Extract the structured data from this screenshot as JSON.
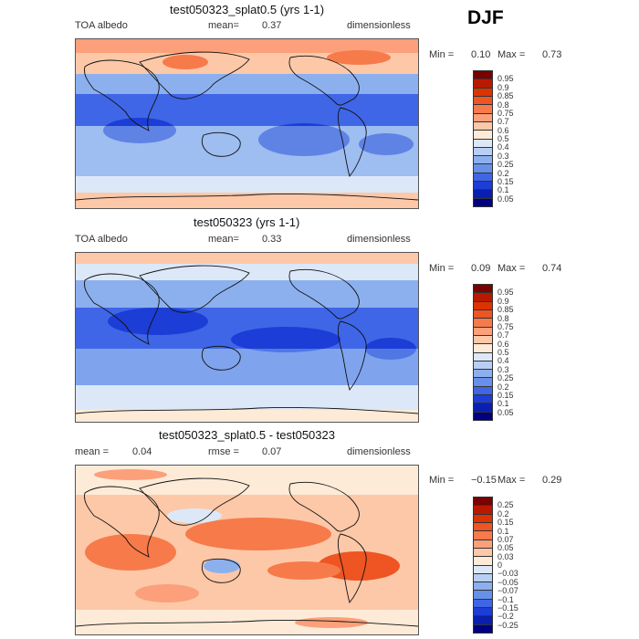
{
  "season": "DJF",
  "chart_data": [
    {
      "type": "heatmap",
      "title": "test050323_splat0.5 (yrs 1-1)",
      "left_label": "TOA albedo",
      "stat_label": "mean=",
      "stat_value": "0.37",
      "units": "dimensionless",
      "min_label": "Min =",
      "min_value": "0.10",
      "max_label": "Max =",
      "max_value": "0.73",
      "levels": [
        "0.95",
        "0.9",
        "0.85",
        "0.8",
        "0.75",
        "0.7",
        "0.6",
        "0.5",
        "0.4",
        "0.3",
        "0.25",
        "0.2",
        "0.15",
        "0.1",
        "0.05"
      ],
      "colors": [
        "#7b0000",
        "#b81a00",
        "#dd3300",
        "#ee5522",
        "#f77a4a",
        "#fba07a",
        "#fdc8a8",
        "#fdebd8",
        "#dce8f8",
        "#b8cff3",
        "#8cb0ee",
        "#6690ea",
        "#3f66e6",
        "#1c3dd6",
        "#0a1fb0",
        "#000080"
      ]
    },
    {
      "type": "heatmap",
      "title": "test050323 (yrs 1-1)",
      "left_label": "TOA albedo",
      "stat_label": "mean=",
      "stat_value": "0.33",
      "units": "dimensionless",
      "min_label": "Min =",
      "min_value": "0.09",
      "max_label": "Max =",
      "max_value": "0.74",
      "levels": [
        "0.95",
        "0.9",
        "0.85",
        "0.8",
        "0.75",
        "0.7",
        "0.6",
        "0.5",
        "0.4",
        "0.3",
        "0.25",
        "0.2",
        "0.15",
        "0.1",
        "0.05"
      ],
      "colors": [
        "#7b0000",
        "#b81a00",
        "#dd3300",
        "#ee5522",
        "#f77a4a",
        "#fba07a",
        "#fdc8a8",
        "#fdebd8",
        "#dce8f8",
        "#b8cff3",
        "#8cb0ee",
        "#6690ea",
        "#3f66e6",
        "#1c3dd6",
        "#0a1fb0",
        "#000080"
      ]
    },
    {
      "type": "heatmap",
      "title": "test050323_splat0.5 - test050323",
      "left_label": "mean =",
      "left_value": "0.04",
      "stat_label": "rmse =",
      "stat_value": "0.07",
      "units": "dimensionless",
      "min_label": "Min =",
      "min_value": "−0.15",
      "max_label": "Max =",
      "max_value": "0.29",
      "levels": [
        "0.25",
        "0.2",
        "0.15",
        "0.1",
        "0.07",
        "0.05",
        "0.03",
        "0",
        "−0.03",
        "−0.05",
        "−0.07",
        "−0.1",
        "−0.15",
        "−0.2",
        "−0.25"
      ],
      "colors": [
        "#7b0000",
        "#b81a00",
        "#dd3300",
        "#ee5522",
        "#f77a4a",
        "#fba07a",
        "#fdc8a8",
        "#fdebd8",
        "#dce8f8",
        "#b8cff3",
        "#8cb0ee",
        "#6690ea",
        "#3f66e6",
        "#1c3dd6",
        "#0a1fb0",
        "#000080"
      ]
    }
  ]
}
